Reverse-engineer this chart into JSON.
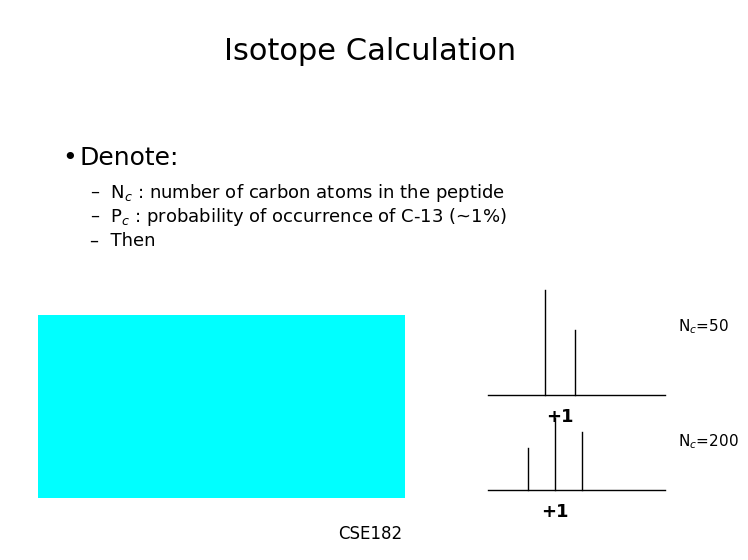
{
  "title": "Isotope Calculation",
  "title_fontsize": 22,
  "background_color": "#ffffff",
  "bullet_text": "Denote:",
  "bullet_fontsize": 18,
  "dash_fontsize": 13,
  "cyan_color": "#00FFFF",
  "footer_text": "CSE182",
  "footer_fontsize": 12,
  "diagram1_label": "N$_c$=50",
  "diagram2_label": "N$_c$=200",
  "plus1_label": "+1",
  "diag_label_fontsize": 11,
  "plus1_fontsize": 13
}
